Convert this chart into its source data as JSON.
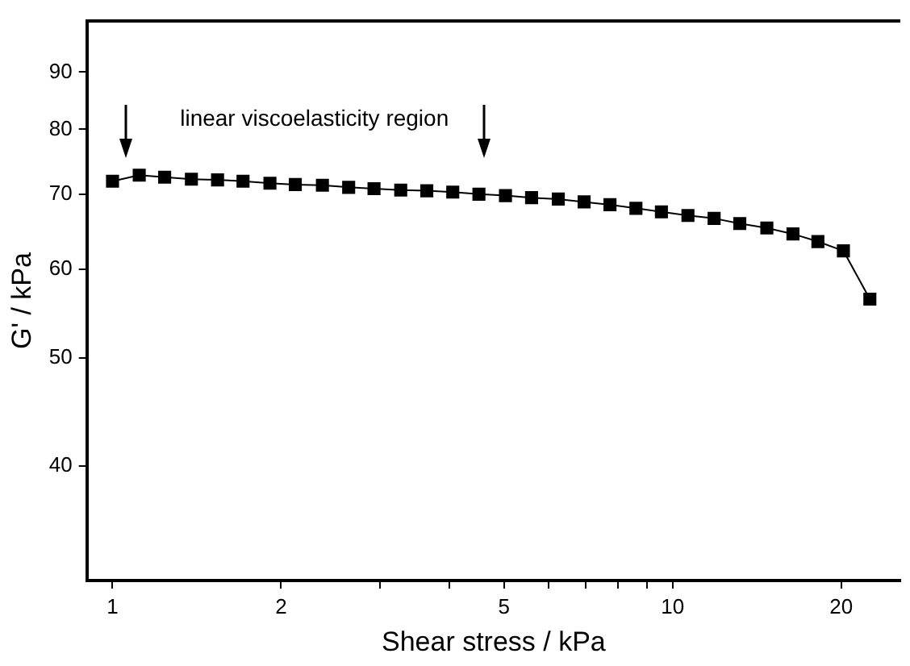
{
  "chart_data": {
    "type": "line",
    "xlabel": "Shear stress / kPa",
    "ylabel": "G' / kPa",
    "log": "xy",
    "marker": "square",
    "line_style": "solid",
    "grid": false,
    "legend": false,
    "xlim": [
      0.9,
      25.5
    ],
    "xticks": [
      1,
      2,
      {
        "value": 3,
        "label": null
      },
      {
        "value": 4,
        "label": null
      },
      5,
      {
        "value": 6,
        "label": null
      },
      {
        "value": 7,
        "label": null
      },
      {
        "value": 8,
        "label": null
      },
      {
        "value": 9,
        "label": null
      },
      10,
      20
    ],
    "ylim": [
      31.6,
      100
    ],
    "yticks": [
      40,
      50,
      60,
      70,
      80,
      90
    ],
    "series": [
      {
        "color": "#000000",
        "x": [
          1.0,
          1.116,
          1.239,
          1.383,
          1.54,
          1.71,
          1.91,
          2.12,
          2.37,
          2.64,
          2.93,
          3.27,
          3.64,
          4.05,
          4.51,
          5.03,
          5.6,
          6.25,
          6.95,
          7.73,
          8.6,
          9.55,
          10.65,
          11.86,
          13.18,
          14.73,
          16.4,
          18.17,
          20.18,
          22.5
        ],
        "values": [
          71.9,
          72.8,
          72.5,
          72.2,
          72.1,
          71.9,
          71.6,
          71.4,
          71.3,
          71.0,
          70.8,
          70.6,
          70.5,
          70.3,
          70.0,
          69.8,
          69.5,
          69.3,
          68.9,
          68.5,
          68.0,
          67.5,
          67.0,
          66.6,
          65.9,
          65.3,
          64.5,
          63.5,
          62.3,
          56.4
        ]
      }
    ],
    "annotations": [
      "linear viscoelasticity region"
    ]
  }
}
